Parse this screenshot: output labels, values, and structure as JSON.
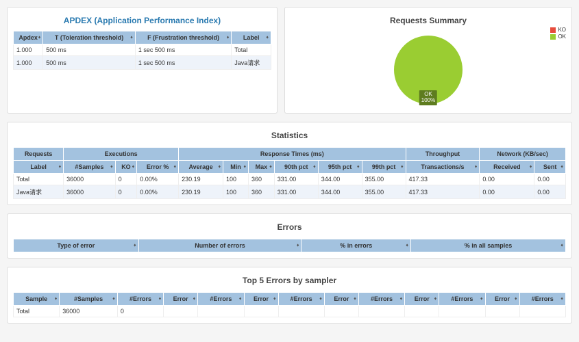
{
  "apdex": {
    "title": "APDEX (Application Performance Index)",
    "columns": [
      "Apdex",
      "T (Toleration threshold)",
      "F (Frustration threshold)",
      "Label"
    ],
    "rows": [
      [
        "1.000",
        "500 ms",
        "1 sec 500 ms",
        "Total"
      ],
      [
        "1.000",
        "500 ms",
        "1 sec 500 ms",
        "Java请求"
      ]
    ]
  },
  "summary": {
    "title": "Requests Summary",
    "pie": {
      "ok_pct": 100,
      "ok_color": "#9acd32",
      "ko_color": "#e74c3c",
      "label_line1": "OK",
      "label_line2": "100%"
    },
    "legend": [
      {
        "name": "KO",
        "color": "#e74c3c"
      },
      {
        "name": "OK",
        "color": "#9acd32"
      }
    ]
  },
  "statistics": {
    "title": "Statistics",
    "group_headers": [
      {
        "label": "Requests",
        "span": 1
      },
      {
        "label": "Executions",
        "span": 3
      },
      {
        "label": "Response Times (ms)",
        "span": 6
      },
      {
        "label": "Throughput",
        "span": 1
      },
      {
        "label": "Network (KB/sec)",
        "span": 2
      }
    ],
    "columns": [
      "Label",
      "#Samples",
      "KO",
      "Error %",
      "Average",
      "Min",
      "Max",
      "90th pct",
      "95th pct",
      "99th pct",
      "Transactions/s",
      "Received",
      "Sent"
    ],
    "rows": [
      [
        "Total",
        "36000",
        "0",
        "0.00%",
        "230.19",
        "100",
        "360",
        "331.00",
        "344.00",
        "355.00",
        "417.33",
        "0.00",
        "0.00"
      ],
      [
        "Java请求",
        "36000",
        "0",
        "0.00%",
        "230.19",
        "100",
        "360",
        "331.00",
        "344.00",
        "355.00",
        "417.33",
        "0.00",
        "0.00"
      ]
    ]
  },
  "errors": {
    "title": "Errors",
    "columns": [
      "Type of error",
      "Number of errors",
      "% in errors",
      "% in all samples"
    ],
    "rows": []
  },
  "top5": {
    "title": "Top 5 Errors by sampler",
    "columns": [
      "Sample",
      "#Samples",
      "#Errors",
      "Error",
      "#Errors",
      "Error",
      "#Errors",
      "Error",
      "#Errors",
      "Error",
      "#Errors",
      "Error",
      "#Errors"
    ],
    "rows": [
      [
        "Total",
        "36000",
        "0",
        "",
        "",
        "",
        "",
        "",
        "",
        "",
        "",
        "",
        ""
      ]
    ]
  },
  "colors": {
    "header_bg": "#a3c2df",
    "title_color": "#2a7ab0"
  }
}
